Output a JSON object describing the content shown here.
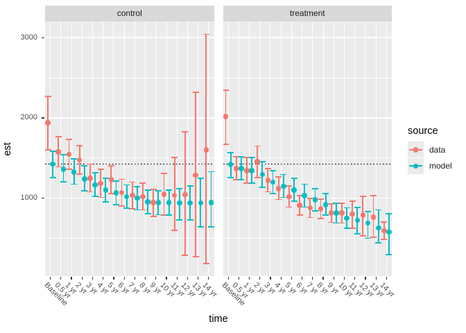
{
  "labels": {
    "y_axis_title": "est",
    "x_axis_title": "time",
    "facet_control": "control",
    "facet_treatment": "treatment",
    "legend_title": "source",
    "legend_data": "data",
    "legend_model": "model"
  },
  "style": {
    "panel_background": "#EBEBEB",
    "strip_background": "#D9D9D9",
    "gridline_color": "#FFFFFF",
    "axis_text_color": "#4D4D4D",
    "tick_mark_color": "#333333",
    "reference_line_color": "#000000"
  },
  "chart_data": {
    "type": "scatter",
    "subtype": "pointrange (point with error bar), two facets, dodged series",
    "title": "",
    "xlabel": "time",
    "ylabel": "est",
    "categories": [
      "Baseline",
      "0.5 yr",
      "1 yr",
      "2 yr",
      "3 yr",
      "4 yr",
      "5 yr",
      "6 yr",
      "7 yr",
      "8 yr",
      "9 yr",
      "10 yr",
      "11 yr",
      "12 yr",
      "13 yr",
      "14 yr"
    ],
    "y_ticks_major": [
      1000,
      2000,
      3000
    ],
    "y_ticks_minor": [
      500,
      1500,
      2500
    ],
    "ylim": [
      30,
      3200
    ],
    "reference_line_y": 1425,
    "grid": true,
    "legend": {
      "title": "source",
      "position": "right",
      "entries": [
        "data",
        "model"
      ]
    },
    "series_colors": {
      "data": "#F8766D",
      "model": "#00BFC4"
    },
    "facets": [
      {
        "label": "control",
        "series": [
          {
            "name": "data",
            "color": "#F8766D",
            "points": [
              {
                "est": 1940,
                "lo": 1605,
                "hi": 2270
              },
              {
                "est": 1575,
                "lo": 1390,
                "hi": 1765
              },
              {
                "est": 1545,
                "lo": 1360,
                "hi": 1735
              },
              {
                "est": 1475,
                "lo": 1300,
                "hi": 1655
              },
              {
                "est": 1250,
                "lo": 1080,
                "hi": 1425
              },
              {
                "est": 1185,
                "lo": 1010,
                "hi": 1360
              },
              {
                "est": 1230,
                "lo": 1060,
                "hi": 1405
              },
              {
                "est": 1070,
                "lo": 905,
                "hi": 1235
              },
              {
                "est": 1035,
                "lo": 870,
                "hi": 1200
              },
              {
                "est": 1020,
                "lo": 855,
                "hi": 1185
              },
              {
                "est": 945,
                "lo": 775,
                "hi": 1110
              },
              {
                "est": 1050,
                "lo": 790,
                "hi": 1310
              },
              {
                "est": 1035,
                "lo": 600,
                "hi": 1510
              },
              {
                "est": 1045,
                "lo": 290,
                "hi": 1825
              },
              {
                "est": 1285,
                "lo": 270,
                "hi": 2320
              },
              {
                "est": 1600,
                "lo": 185,
                "hi": 3040
              }
            ]
          },
          {
            "name": "model",
            "color": "#00BFC4",
            "points": [
              {
                "est": 1425,
                "lo": 1255,
                "hi": 1585
              },
              {
                "est": 1360,
                "lo": 1205,
                "hi": 1540
              },
              {
                "est": 1325,
                "lo": 1175,
                "hi": 1490
              },
              {
                "est": 1240,
                "lo": 1095,
                "hi": 1400
              },
              {
                "est": 1165,
                "lo": 1020,
                "hi": 1320
              },
              {
                "est": 1100,
                "lo": 955,
                "hi": 1250
              },
              {
                "est": 1065,
                "lo": 920,
                "hi": 1210
              },
              {
                "est": 1020,
                "lo": 875,
                "hi": 1165
              },
              {
                "est": 1000,
                "lo": 855,
                "hi": 1145
              },
              {
                "est": 955,
                "lo": 810,
                "hi": 1100
              },
              {
                "est": 945,
                "lo": 795,
                "hi": 1095
              },
              {
                "est": 945,
                "lo": 790,
                "hi": 1100
              },
              {
                "est": 940,
                "lo": 730,
                "hi": 1120
              },
              {
                "est": 940,
                "lo": 730,
                "hi": 1150
              },
              {
                "est": 940,
                "lo": 640,
                "hi": 1250
              },
              {
                "est": 945,
                "lo": 640,
                "hi": 1330
              }
            ]
          }
        ]
      },
      {
        "label": "treatment",
        "series": [
          {
            "name": "data",
            "color": "#F8766D",
            "points": [
              {
                "est": 2015,
                "lo": 1670,
                "hi": 2345
              },
              {
                "est": 1370,
                "lo": 1230,
                "hi": 1515
              },
              {
                "est": 1345,
                "lo": 1190,
                "hi": 1510
              },
              {
                "est": 1455,
                "lo": 1255,
                "hi": 1650
              },
              {
                "est": 1220,
                "lo": 1080,
                "hi": 1370
              },
              {
                "est": 1120,
                "lo": 985,
                "hi": 1265
              },
              {
                "est": 1020,
                "lo": 890,
                "hi": 1150
              },
              {
                "est": 910,
                "lo": 790,
                "hi": 1035
              },
              {
                "est": 880,
                "lo": 760,
                "hi": 1000
              },
              {
                "est": 870,
                "lo": 750,
                "hi": 990
              },
              {
                "est": 815,
                "lo": 700,
                "hi": 930
              },
              {
                "est": 815,
                "lo": 690,
                "hi": 940
              },
              {
                "est": 805,
                "lo": 625,
                "hi": 965
              },
              {
                "est": 790,
                "lo": 530,
                "hi": 1020
              },
              {
                "est": 765,
                "lo": 515,
                "hi": 1035
              },
              {
                "est": 595,
                "lo": 490,
                "hi": 705
              }
            ]
          },
          {
            "name": "model",
            "color": "#00BFC4",
            "points": [
              {
                "est": 1420,
                "lo": 1255,
                "hi": 1570
              },
              {
                "est": 1370,
                "lo": 1230,
                "hi": 1515
              },
              {
                "est": 1345,
                "lo": 1190,
                "hi": 1505
              },
              {
                "est": 1295,
                "lo": 1135,
                "hi": 1455
              },
              {
                "est": 1200,
                "lo": 1060,
                "hi": 1345
              },
              {
                "est": 1150,
                "lo": 1010,
                "hi": 1295
              },
              {
                "est": 1100,
                "lo": 960,
                "hi": 1245
              },
              {
                "est": 1030,
                "lo": 890,
                "hi": 1175
              },
              {
                "est": 980,
                "lo": 845,
                "hi": 1120
              },
              {
                "est": 920,
                "lo": 790,
                "hi": 1055
              },
              {
                "est": 815,
                "lo": 690,
                "hi": 940
              },
              {
                "est": 750,
                "lo": 625,
                "hi": 880
              },
              {
                "est": 725,
                "lo": 560,
                "hi": 885
              },
              {
                "est": 690,
                "lo": 500,
                "hi": 835
              },
              {
                "est": 630,
                "lo": 445,
                "hi": 855
              },
              {
                "est": 580,
                "lo": 300,
                "hi": 805
              }
            ]
          }
        ]
      }
    ]
  }
}
